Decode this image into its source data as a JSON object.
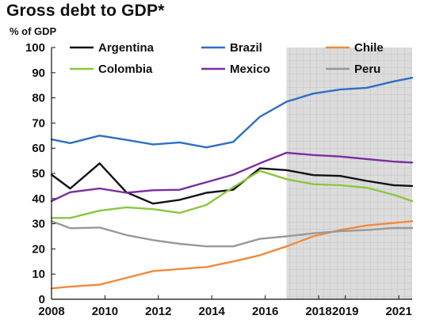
{
  "chart_data": {
    "type": "line",
    "title": "Gross debt to GDP*",
    "ylabel": "% of GDP",
    "xlabel": "",
    "xlim": [
      2008,
      2021.5
    ],
    "ylim": [
      0,
      100
    ],
    "y_ticks": [
      0,
      10,
      20,
      30,
      40,
      50,
      60,
      70,
      80,
      90,
      100
    ],
    "x_tick_labels": [
      {
        "value": 2008,
        "label": "2008"
      },
      {
        "value": 2010,
        "label": "2010"
      },
      {
        "value": 2012,
        "label": "2012"
      },
      {
        "value": 2014,
        "label": "2014"
      },
      {
        "value": 2016,
        "label": "2016"
      },
      {
        "value": 2018,
        "label": "2018"
      },
      {
        "value": 2019,
        "label": "2019"
      },
      {
        "value": 2021,
        "label": "2021"
      }
    ],
    "forecast_region": {
      "start": 2016.8,
      "end": 2021.5,
      "shading": "gray-grid"
    },
    "grid": false,
    "legend": "top, three columns",
    "series": [
      {
        "name": "Argentina",
        "color": "#111111",
        "x": [
          2008,
          2008.7,
          2009.8,
          2010.8,
          2011.8,
          2012.8,
          2013.8,
          2014.8,
          2015.8,
          2016.8,
          2017.8,
          2018.8,
          2019.8,
          2020.8,
          2021.5
        ],
        "y": [
          49.5,
          44,
          54,
          42.5,
          38,
          39.5,
          42.3,
          43.5,
          52,
          51.3,
          49.3,
          49,
          47,
          45.3,
          45
        ]
      },
      {
        "name": "Brazil",
        "color": "#2e6fc4",
        "x": [
          2008,
          2008.7,
          2009.8,
          2010.8,
          2011.8,
          2012.8,
          2013.8,
          2014.8,
          2015.8,
          2016.8,
          2017.8,
          2018.8,
          2019.8,
          2020.8,
          2021.5
        ],
        "y": [
          63.5,
          62,
          65,
          63.3,
          61.5,
          62.3,
          60.3,
          62.5,
          72.5,
          78.5,
          81.7,
          83.3,
          84,
          86.5,
          88
        ]
      },
      {
        "name": "Chile",
        "color": "#f08a3c",
        "x": [
          2008,
          2008.7,
          2009.8,
          2010.8,
          2011.8,
          2012.8,
          2013.8,
          2014.8,
          2015.8,
          2016.8,
          2017.8,
          2018.8,
          2019.8,
          2020.8,
          2021.5
        ],
        "y": [
          4.3,
          5,
          5.8,
          8.5,
          11.2,
          12,
          12.8,
          15,
          17.5,
          21,
          25,
          27.5,
          29.3,
          30.3,
          31
        ]
      },
      {
        "name": "Colombia",
        "color": "#8cc63f",
        "x": [
          2008,
          2008.7,
          2009.8,
          2010.8,
          2011.8,
          2012.8,
          2013.8,
          2014.8,
          2015.8,
          2016.8,
          2017.8,
          2018.8,
          2019.8,
          2020.8,
          2021.5
        ],
        "y": [
          32.3,
          32.3,
          35.2,
          36.5,
          35.8,
          34.3,
          37.5,
          44.5,
          51,
          47.7,
          45.7,
          45.3,
          44.3,
          41.5,
          39
        ]
      },
      {
        "name": "Mexico",
        "color": "#7a2f9e",
        "x": [
          2008,
          2008.7,
          2009.8,
          2010.8,
          2011.8,
          2012.8,
          2013.8,
          2014.8,
          2015.8,
          2016.8,
          2017.8,
          2018.8,
          2019.8,
          2020.8,
          2021.5
        ],
        "y": [
          39,
          42.5,
          44,
          42.3,
          43.3,
          43.5,
          46.5,
          49.5,
          54,
          58.2,
          57.3,
          56.7,
          55.7,
          54.7,
          54.3
        ]
      },
      {
        "name": "Peru",
        "color": "#999999",
        "x": [
          2008,
          2008.7,
          2009.8,
          2010.8,
          2011.8,
          2012.8,
          2013.8,
          2014.8,
          2015.8,
          2016.8,
          2017.8,
          2018.8,
          2019.8,
          2020.8,
          2021.5
        ],
        "y": [
          31,
          28.2,
          28.5,
          25.5,
          23.5,
          22,
          21,
          21,
          24,
          25,
          26.2,
          27,
          27.5,
          28.3,
          28.3
        ]
      }
    ]
  }
}
